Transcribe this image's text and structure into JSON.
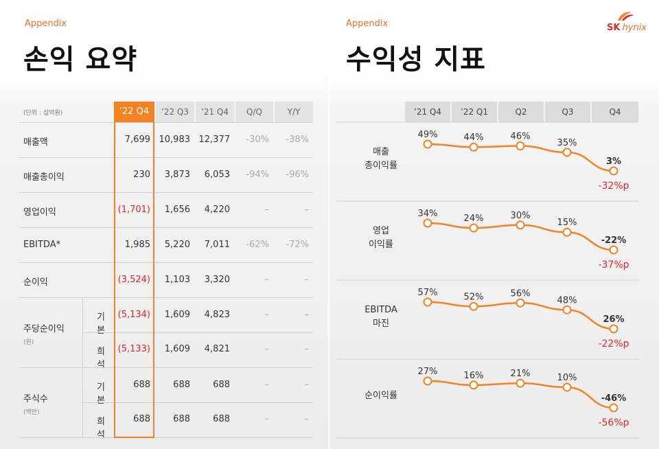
{
  "left": {
    "appendix": "Appendix",
    "title": "손익 요약",
    "unit": "(단위 : 십억원)",
    "columns": [
      "’22 Q4",
      "’22 Q3",
      "’21 Q4",
      "Q/Q",
      "Y/Y"
    ],
    "rows": [
      {
        "label": "매출액",
        "sub": "",
        "values": [
          "7,699",
          "10,983",
          "12,377",
          "-30%",
          "-38%"
        ],
        "neg": false
      },
      {
        "label": "매출총이익",
        "sub": "",
        "values": [
          "230",
          "3,873",
          "6,053",
          "-94%",
          "-96%"
        ],
        "neg": false
      },
      {
        "label": "영업이익",
        "sub": "",
        "values": [
          "(1,701)",
          "1,656",
          "4,220",
          "–",
          "–"
        ],
        "neg": true
      },
      {
        "label": "EBITDA*",
        "sub": "",
        "values": [
          "1,985",
          "5,220",
          "7,011",
          "-62%",
          "-72%"
        ],
        "neg": false
      },
      {
        "label": "순이익",
        "sub": "",
        "values": [
          "(3,524)",
          "1,103",
          "3,320",
          "–",
          "–"
        ],
        "neg": true
      },
      {
        "label": "주당순이익",
        "sublabel": "(원)",
        "sub": "기본",
        "values": [
          "(5,134)",
          "1,609",
          "4,823",
          "–",
          "–"
        ],
        "neg": true
      },
      {
        "label": "",
        "sub": "희석",
        "values": [
          "(5,133)",
          "1,609",
          "4,821",
          "–",
          "–"
        ],
        "neg": true
      },
      {
        "label": "주식수",
        "sublabel": "(백만)",
        "sub": "기본",
        "values": [
          "688",
          "688",
          "688",
          "–",
          "–"
        ],
        "neg": false
      },
      {
        "label": "",
        "sub": "희석",
        "values": [
          "688",
          "688",
          "688",
          "–",
          "–"
        ],
        "neg": false
      }
    ]
  },
  "right": {
    "appendix": "Appendix",
    "title": "수익성 지표",
    "logo": {
      "sk": "SK",
      "hynix": "hynix"
    }
  },
  "colors": {
    "accent": "#f58220",
    "negative": "#e6252a",
    "logo_red": "#e6252a"
  },
  "chart_data": {
    "type": "line",
    "categories": [
      "’21 Q4",
      "’22 Q1",
      "Q2",
      "Q3",
      "Q4"
    ],
    "series": [
      {
        "name": "매출 총이익률",
        "values": [
          49,
          44,
          46,
          35,
          3
        ],
        "labels": [
          "49%",
          "44%",
          "46%",
          "35%",
          "3%"
        ],
        "change": "-32%p"
      },
      {
        "name": "영업 이익률",
        "values": [
          34,
          24,
          30,
          15,
          -22
        ],
        "labels": [
          "34%",
          "24%",
          "30%",
          "15%",
          "-22%"
        ],
        "change": "-37%p"
      },
      {
        "name": "EBITDA 마진",
        "values": [
          57,
          52,
          56,
          48,
          26
        ],
        "labels": [
          "57%",
          "52%",
          "56%",
          "48%",
          "26%"
        ],
        "change": "-22%p"
      },
      {
        "name": "순이익률",
        "values": [
          27,
          16,
          21,
          10,
          -46
        ],
        "labels": [
          "27%",
          "16%",
          "21%",
          "10%",
          "-46%"
        ],
        "change": "-56%p"
      }
    ]
  }
}
